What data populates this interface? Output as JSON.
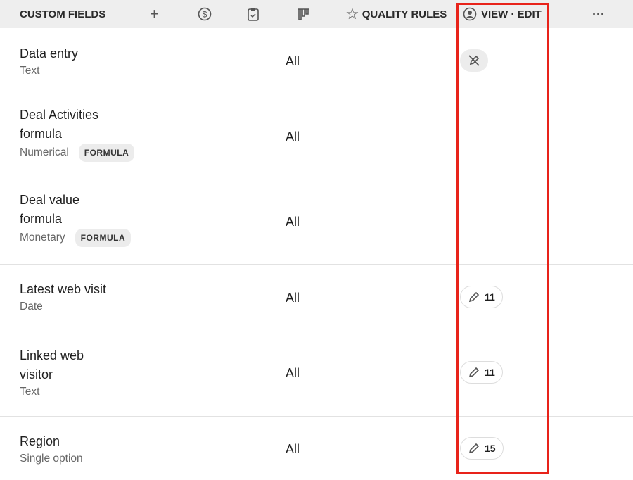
{
  "header": {
    "title": "CUSTOM FIELDS",
    "quality_rules": "QUALITY RULES",
    "view_edit": "VIEW · EDIT",
    "icons": [
      "plus-icon",
      "dollar-icon",
      "clipboard-check-icon",
      "pipeline-icon",
      "star-icon",
      "user-circle-icon",
      "more-icon"
    ]
  },
  "rows": [
    {
      "name": "Data entry",
      "type": "Text",
      "visibility": "All",
      "edit": "",
      "edit_icon": "pencil-off-icon"
    },
    {
      "name": "Deal Activities formula",
      "name_l1": "Deal Activities",
      "name_l2": "formula",
      "type": "Numerical",
      "badge": "FORMULA",
      "visibility": "All"
    },
    {
      "name": "Deal value formula",
      "name_l1": "Deal value",
      "name_l2": "formula",
      "type": "Monetary",
      "badge": "FORMULA",
      "visibility": "All"
    },
    {
      "name": "Latest web visit",
      "type": "Date",
      "visibility": "All",
      "edit": "11"
    },
    {
      "name": "Linked web visitor",
      "name_l1": "Linked web",
      "name_l2": "visitor",
      "type": "Text",
      "visibility": "All",
      "edit": "11"
    },
    {
      "name": "Region",
      "type": "Single option",
      "visibility": "All",
      "edit": "15"
    }
  ],
  "colors": {
    "highlight": "#e8231a",
    "header_bg": "#eeeeee"
  }
}
